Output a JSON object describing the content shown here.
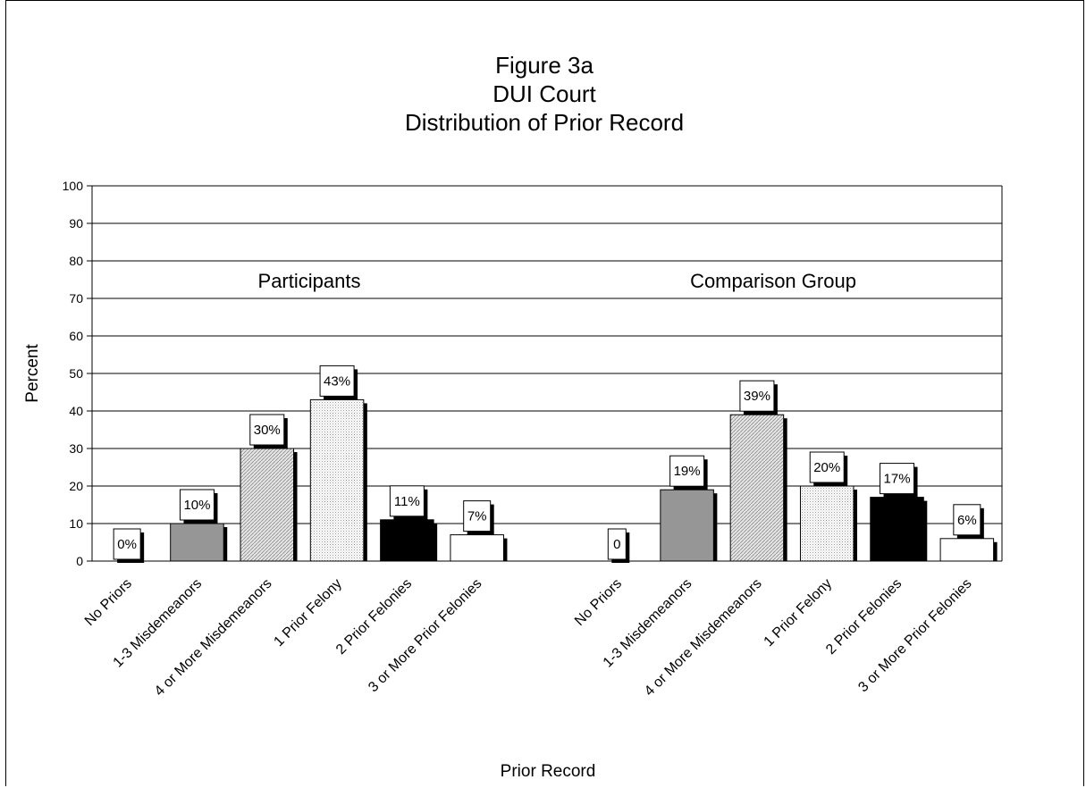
{
  "chart_data": {
    "type": "bar",
    "title_lines": [
      "Figure 3a",
      "DUI Court",
      "Distribution of Prior Record"
    ],
    "xlabel": "Prior Record",
    "ylabel": "Percent",
    "ylim": [
      0,
      100
    ],
    "yticks": [
      0,
      10,
      20,
      30,
      40,
      50,
      60,
      70,
      80,
      90,
      100
    ],
    "grid": true,
    "groups": [
      {
        "name": "Participants",
        "categories": [
          "No Priors",
          "1-3 Misdemeanors",
          "4 or More Misdemeanors",
          "1 Prior Felony",
          "2 Prior Felonies",
          "3 or More Prior Felonies"
        ],
        "values": [
          0,
          10,
          30,
          43,
          11,
          7
        ],
        "labels": [
          "0%",
          "10%",
          "30%",
          "43%",
          "11%",
          "7%"
        ]
      },
      {
        "name": "Comparison Group",
        "categories": [
          "No Priors",
          "1-3 Misdemeanors",
          "4 or More Misdemeanors",
          "1 Prior Felony",
          "2 Prior Felonies",
          "3 or More Prior Felonies"
        ],
        "values": [
          0,
          19,
          39,
          20,
          17,
          6
        ],
        "labels": [
          "0",
          "19%",
          "39%",
          "20%",
          "17%",
          "6%"
        ]
      }
    ],
    "category_styles": [
      "white",
      "gray",
      "light-hatch",
      "dotted",
      "black",
      "white"
    ]
  }
}
